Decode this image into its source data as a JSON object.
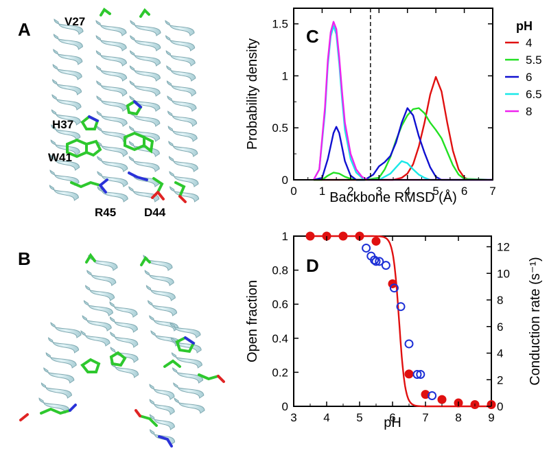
{
  "panels": {
    "A": "A",
    "B": "B",
    "C": "C",
    "D": "D"
  },
  "residue_labels": {
    "V27": "V27",
    "H37": "H37",
    "W41": "W41",
    "R45": "R45",
    "D44": "D44"
  },
  "colors": {
    "helix": "#c9e7ec",
    "helix_edge": "#7fa9b1",
    "sidechain_carbon": "#2ec82e",
    "sidechain_nitrogen": "#2a32d8",
    "sidechain_oxygen": "#e02424",
    "fit_line": "#e01010",
    "open_circles": "#1c2fd6"
  },
  "chart_data": [
    {
      "id": "C",
      "type": "line",
      "xlabel": "Backbone RMSD (Å)",
      "ylabel": "Probability density",
      "xlim": [
        0,
        7
      ],
      "ylim": [
        0,
        1.65
      ],
      "xticks": [
        "0",
        "1",
        "2",
        "3",
        "4",
        "5",
        "6",
        "7"
      ],
      "yticks": [
        "0",
        "0.5",
        "1",
        "1.5"
      ],
      "vertical_dashed_line_x": 2.7,
      "legend_title": "pH",
      "legend_position": "right",
      "series": [
        {
          "name": "4",
          "color": "#e01010",
          "x": [
            0.7,
            1.0,
            1.2,
            1.4,
            1.6,
            1.8,
            2.0,
            2.5,
            3.0,
            3.5,
            3.8,
            4.0,
            4.2,
            4.4,
            4.6,
            4.8,
            5.0,
            5.2,
            5.4,
            5.6,
            5.8,
            6.0,
            6.2,
            7.0
          ],
          "y": [
            0,
            0,
            0,
            0,
            0,
            0,
            0,
            0,
            0,
            0,
            0.02,
            0.06,
            0.15,
            0.32,
            0.55,
            0.82,
            0.99,
            0.85,
            0.55,
            0.28,
            0.1,
            0.02,
            0,
            0
          ]
        },
        {
          "name": "5.5",
          "color": "#22e022",
          "x": [
            0.7,
            1.0,
            1.2,
            1.4,
            1.6,
            1.8,
            2.0,
            2.2,
            2.5,
            3.0,
            3.2,
            3.4,
            3.6,
            3.8,
            4.0,
            4.2,
            4.4,
            4.6,
            4.8,
            5.0,
            5.2,
            5.4,
            5.6,
            5.8,
            6.0,
            7.0
          ],
          "y": [
            0,
            0,
            0.04,
            0.07,
            0.06,
            0.03,
            0.01,
            0,
            0,
            0.02,
            0.1,
            0.22,
            0.38,
            0.52,
            0.62,
            0.68,
            0.69,
            0.64,
            0.55,
            0.48,
            0.4,
            0.27,
            0.14,
            0.05,
            0.01,
            0
          ]
        },
        {
          "name": "6",
          "color": "#1010d0",
          "x": [
            0.7,
            1.0,
            1.2,
            1.4,
            1.5,
            1.6,
            1.8,
            2.0,
            2.2,
            2.5,
            2.8,
            3.0,
            3.2,
            3.4,
            3.6,
            3.8,
            4.0,
            4.2,
            4.4,
            4.6,
            4.8,
            5.0,
            5.2,
            7.0
          ],
          "y": [
            0,
            0.02,
            0.2,
            0.45,
            0.51,
            0.45,
            0.18,
            0.04,
            0,
            0,
            0.05,
            0.13,
            0.17,
            0.23,
            0.36,
            0.55,
            0.69,
            0.62,
            0.42,
            0.26,
            0.12,
            0.03,
            0,
            0
          ]
        },
        {
          "name": "6.5",
          "color": "#18e8e8",
          "x": [
            0.7,
            0.9,
            1.1,
            1.2,
            1.3,
            1.4,
            1.5,
            1.6,
            1.7,
            1.8,
            2.0,
            2.2,
            2.4,
            2.6,
            3.0,
            3.2,
            3.4,
            3.6,
            3.8,
            4.0,
            4.2,
            4.4,
            4.6,
            4.8,
            7.0
          ],
          "y": [
            0,
            0.1,
            0.65,
            1.1,
            1.38,
            1.48,
            1.4,
            1.12,
            0.78,
            0.48,
            0.2,
            0.07,
            0.02,
            0,
            0,
            0.03,
            0.06,
            0.12,
            0.18,
            0.16,
            0.1,
            0.05,
            0.02,
            0,
            0
          ]
        },
        {
          "name": "8",
          "color": "#ee22ee",
          "x": [
            0.7,
            0.9,
            1.1,
            1.2,
            1.3,
            1.4,
            1.5,
            1.6,
            1.7,
            1.8,
            2.0,
            2.2,
            2.4,
            2.6,
            3.0,
            7.0
          ],
          "y": [
            0,
            0.1,
            0.7,
            1.15,
            1.42,
            1.52,
            1.45,
            1.18,
            0.85,
            0.55,
            0.25,
            0.1,
            0.03,
            0,
            0,
            0
          ]
        }
      ]
    },
    {
      "id": "D",
      "type": "scatter",
      "xlabel": "pH",
      "ylabel": "Open fraction",
      "y2label": "Conduction rate (s⁻¹)",
      "xlim": [
        3,
        9
      ],
      "ylim": [
        0,
        1
      ],
      "y2lim": [
        0,
        12.8
      ],
      "xticks": [
        "3",
        "4",
        "5",
        "6",
        "7",
        "8",
        "9"
      ],
      "yticks": [
        "0",
        "0.2",
        "0.4",
        "0.6",
        "0.8",
        "1"
      ],
      "y2ticks": [
        "0",
        "2",
        "4",
        "6",
        "8",
        "10",
        "12"
      ],
      "fit_curve": {
        "color": "#e01010",
        "pKa": 6.2,
        "hill": 4.8
      },
      "series": [
        {
          "name": "Open fraction",
          "marker": "filled-circle",
          "color": "#e01010",
          "x": [
            3.5,
            4.0,
            4.5,
            5.0,
            5.5,
            6.0,
            6.5,
            7.0,
            7.5,
            8.0,
            8.5,
            9.0
          ],
          "y": [
            1.0,
            1.0,
            1.0,
            1.0,
            0.97,
            0.72,
            0.19,
            0.07,
            0.04,
            0.02,
            0.01,
            0.01
          ]
        },
        {
          "name": "Conduction rate",
          "marker": "open-circle",
          "color": "#1c2fd6",
          "axis": "right",
          "x": [
            5.2,
            5.35,
            5.45,
            5.5,
            5.6,
            5.8,
            6.05,
            6.25,
            6.5,
            6.75,
            6.85,
            7.2
          ],
          "y": [
            11.9,
            11.3,
            11.0,
            10.9,
            10.9,
            10.6,
            8.9,
            7.5,
            4.7,
            2.4,
            2.4,
            0.8
          ]
        }
      ]
    }
  ]
}
